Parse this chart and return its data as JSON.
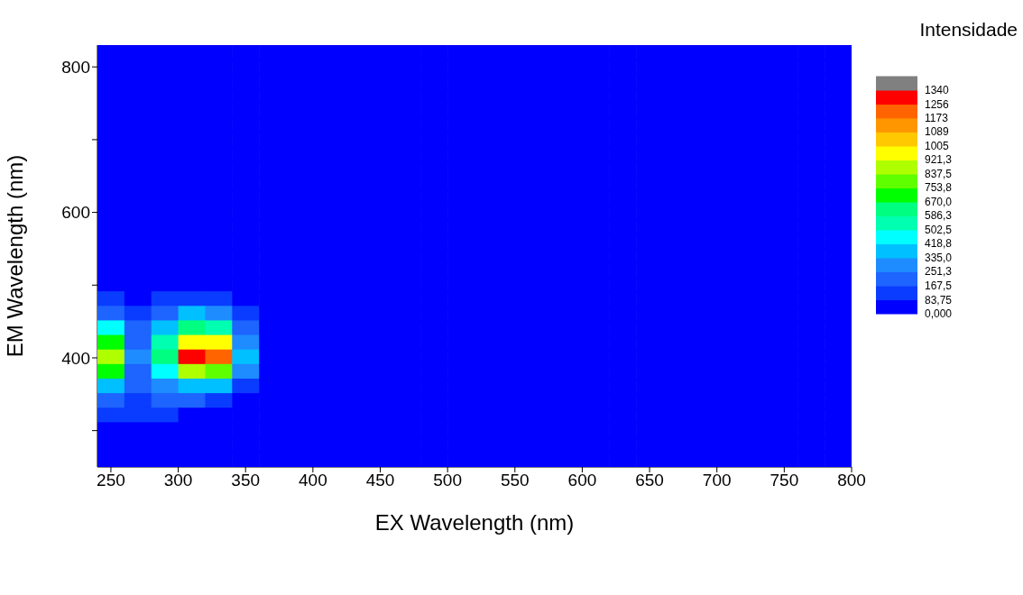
{
  "chart_data": {
    "type": "heatmap",
    "xlabel": "EX Wavelength (nm)",
    "ylabel": "EM Wavelength (nm)",
    "clabel": "Intensidade",
    "x": [
      250,
      270,
      290,
      310,
      330,
      350,
      370,
      390,
      410,
      430,
      450,
      470,
      490,
      510,
      530,
      550,
      570,
      590,
      610,
      630,
      650,
      670,
      690,
      710,
      730,
      750,
      770,
      790
    ],
    "y": [
      820,
      800,
      780,
      760,
      740,
      720,
      700,
      680,
      660,
      640,
      620,
      600,
      580,
      560,
      540,
      520,
      500,
      480,
      460,
      440,
      420,
      400,
      380,
      360,
      340,
      320,
      300,
      280,
      260
    ],
    "cells": [
      [
        0,
        0,
        0,
        0,
        0,
        0,
        0,
        0,
        0,
        0,
        0,
        0,
        0,
        0,
        0,
        0,
        0,
        0,
        0,
        0,
        0,
        0,
        0,
        0,
        0,
        0,
        0,
        0
      ],
      [
        0,
        0,
        0,
        0,
        0,
        0,
        0,
        0,
        0,
        0,
        0,
        0,
        0,
        0,
        0,
        0,
        0,
        0,
        0,
        0,
        0,
        0,
        0,
        0,
        0,
        0,
        0,
        0
      ],
      [
        0,
        0,
        0,
        0,
        0,
        0,
        0,
        0,
        0,
        0,
        0,
        0,
        0,
        0,
        0,
        0,
        0,
        0,
        0,
        0,
        0,
        0,
        0,
        0,
        0,
        0,
        0,
        0
      ],
      [
        0,
        0,
        0,
        0,
        0,
        0,
        0,
        0,
        0,
        0,
        0,
        0,
        0,
        0,
        0,
        0,
        0,
        0,
        0,
        0,
        0,
        0,
        0,
        0,
        0,
        0,
        0,
        0
      ],
      [
        0,
        0,
        0,
        0,
        0,
        0,
        0,
        0,
        0,
        0,
        0,
        0,
        0,
        0,
        0,
        0,
        0,
        0,
        0,
        0,
        0,
        0,
        0,
        0,
        0,
        0,
        0,
        0
      ],
      [
        0,
        0,
        0,
        0,
        0,
        0,
        0,
        0,
        0,
        0,
        0,
        0,
        0,
        0,
        0,
        0,
        0,
        0,
        0,
        0,
        0,
        0,
        0,
        0,
        0,
        0,
        0,
        0
      ],
      [
        0,
        0,
        0,
        0,
        0,
        0,
        0,
        0,
        0,
        0,
        0,
        0,
        0,
        0,
        0,
        0,
        0,
        0,
        0,
        0,
        0,
        0,
        0,
        0,
        0,
        0,
        0,
        0
      ],
      [
        0,
        0,
        0,
        0,
        0,
        0,
        0,
        0,
        0,
        0,
        0,
        0,
        0,
        0,
        0,
        0,
        0,
        0,
        0,
        0,
        0,
        0,
        0,
        0,
        0,
        0,
        0,
        0
      ],
      [
        0,
        0,
        0,
        0,
        0,
        0,
        0,
        0,
        0,
        0,
        0,
        0,
        0,
        0,
        0,
        0,
        0,
        0,
        0,
        0,
        0,
        0,
        0,
        0,
        0,
        0,
        0,
        0
      ],
      [
        0,
        0,
        0,
        0,
        0,
        0,
        0,
        0,
        0,
        0,
        0,
        0,
        0,
        0,
        0,
        0,
        0,
        0,
        0,
        0,
        0,
        0,
        0,
        0,
        0,
        0,
        0,
        0
      ],
      [
        0,
        0,
        0,
        0,
        0,
        0,
        0,
        0,
        0,
        0,
        0,
        0,
        0,
        0,
        0,
        0,
        0,
        0,
        0,
        0,
        0,
        0,
        0,
        0,
        0,
        0,
        0,
        0
      ],
      [
        0,
        0,
        0,
        0,
        0,
        0,
        0,
        0,
        0,
        0,
        0,
        0,
        0,
        0,
        0,
        0,
        0,
        0,
        0,
        0,
        0,
        0,
        0,
        0,
        0,
        0,
        0,
        0
      ],
      [
        0,
        0,
        0,
        0,
        0,
        0,
        0,
        0,
        0,
        0,
        0,
        0,
        0,
        0,
        0,
        0,
        0,
        0,
        0,
        0,
        0,
        0,
        0,
        0,
        0,
        0,
        0,
        0
      ],
      [
        0,
        0,
        0,
        0,
        0,
        0,
        0,
        0,
        0,
        0,
        0,
        0,
        0,
        0,
        0,
        0,
        0,
        0,
        0,
        0,
        0,
        0,
        0,
        0,
        0,
        0,
        0,
        0
      ],
      [
        0,
        0,
        0,
        0,
        0,
        0,
        0,
        0,
        0,
        0,
        0,
        0,
        0,
        0,
        0,
        0,
        0,
        0,
        0,
        0,
        0,
        0,
        0,
        0,
        0,
        0,
        0,
        0
      ],
      [
        0,
        0,
        0,
        0,
        0,
        0,
        0,
        0,
        0,
        0,
        0,
        0,
        0,
        0,
        0,
        0,
        0,
        0,
        0,
        0,
        0,
        0,
        0,
        0,
        0,
        0,
        0,
        0
      ],
      [
        0,
        0,
        0,
        0,
        0,
        0,
        0,
        0,
        0,
        0,
        0,
        0,
        0,
        0,
        0,
        0,
        0,
        0,
        0,
        0,
        0,
        0,
        0,
        0,
        0,
        0,
        0,
        0
      ],
      [
        125,
        40,
        125,
        125,
        125,
        40,
        0,
        0,
        0,
        0,
        0,
        0,
        0,
        0,
        0,
        0,
        0,
        0,
        0,
        0,
        0,
        0,
        0,
        0,
        0,
        0,
        0,
        0
      ],
      [
        210,
        125,
        210,
        377,
        293,
        125,
        0,
        0,
        0,
        0,
        0,
        0,
        0,
        0,
        0,
        0,
        0,
        0,
        0,
        0,
        0,
        0,
        0,
        0,
        0,
        0,
        0,
        0
      ],
      [
        460,
        210,
        377,
        628,
        544,
        210,
        0,
        0,
        0,
        0,
        0,
        0,
        0,
        0,
        0,
        0,
        0,
        0,
        0,
        0,
        0,
        0,
        0,
        0,
        0,
        0,
        0,
        0
      ],
      [
        712,
        210,
        544,
        963,
        963,
        293,
        0,
        0,
        0,
        0,
        0,
        0,
        0,
        0,
        0,
        0,
        0,
        0,
        0,
        0,
        0,
        0,
        0,
        0,
        0,
        0,
        0,
        0
      ],
      [
        879,
        293,
        628,
        1298,
        1215,
        377,
        0,
        0,
        0,
        0,
        0,
        0,
        0,
        0,
        0,
        0,
        0,
        0,
        0,
        0,
        0,
        0,
        0,
        0,
        0,
        0,
        0,
        0
      ],
      [
        712,
        210,
        460,
        879,
        795,
        293,
        0,
        0,
        0,
        0,
        0,
        0,
        0,
        0,
        0,
        0,
        0,
        0,
        0,
        0,
        0,
        0,
        0,
        0,
        0,
        0,
        0,
        0
      ],
      [
        377,
        210,
        293,
        377,
        377,
        125,
        0,
        0,
        0,
        0,
        0,
        0,
        0,
        0,
        0,
        0,
        0,
        0,
        0,
        0,
        0,
        0,
        0,
        0,
        0,
        0,
        0,
        0
      ],
      [
        210,
        125,
        210,
        210,
        125,
        40,
        0,
        0,
        0,
        0,
        0,
        0,
        0,
        0,
        0,
        0,
        0,
        0,
        0,
        0,
        0,
        0,
        0,
        0,
        0,
        0,
        0,
        0
      ],
      [
        125,
        125,
        125,
        40,
        40,
        0,
        0,
        0,
        0,
        0,
        0,
        0,
        0,
        0,
        0,
        0,
        0,
        0,
        0,
        0,
        0,
        0,
        0,
        0,
        0,
        0,
        0,
        0
      ],
      [
        40,
        40,
        0,
        0,
        0,
        0,
        0,
        0,
        0,
        0,
        0,
        0,
        0,
        0,
        0,
        0,
        0,
        0,
        0,
        0,
        0,
        0,
        0,
        0,
        0,
        0,
        0,
        0
      ],
      [
        0,
        0,
        0,
        0,
        0,
        0,
        0,
        0,
        0,
        0,
        0,
        0,
        0,
        0,
        0,
        0,
        0,
        0,
        0,
        0,
        0,
        0,
        0,
        0,
        0,
        0,
        0,
        0
      ],
      [
        0,
        0,
        0,
        0,
        0,
        0,
        0,
        0,
        0,
        0,
        0,
        0,
        0,
        0,
        0,
        0,
        0,
        0,
        0,
        0,
        0,
        0,
        0,
        0,
        0,
        0,
        0,
        0
      ]
    ],
    "xlim": [
      240,
      800
    ],
    "xticks": [
      250,
      300,
      350,
      400,
      450,
      500,
      550,
      600,
      650,
      700,
      750,
      800
    ],
    "ylim": [
      250,
      830
    ],
    "yticks": [
      {
        "value": 300,
        "label": null
      },
      400,
      {
        "value": 500,
        "label": null
      },
      600,
      {
        "value": 700,
        "label": null
      },
      800
    ],
    "clim": [
      0,
      1340
    ],
    "cticks": [
      {
        "value": 0,
        "label": "0,000"
      },
      {
        "value": 83.75,
        "label": "83,75"
      },
      {
        "value": 167.5,
        "label": "167,5"
      },
      {
        "value": 251.3,
        "label": "251,3"
      },
      {
        "value": 335,
        "label": "335,0"
      },
      {
        "value": 418.8,
        "label": "418,8"
      },
      {
        "value": 502.5,
        "label": "502,5"
      },
      {
        "value": 586.3,
        "label": "586,3"
      },
      {
        "value": 670,
        "label": "670,0"
      },
      {
        "value": 753.8,
        "label": "753,8"
      },
      {
        "value": 837.5,
        "label": "837,5"
      },
      {
        "value": 921.3,
        "label": "921,3"
      },
      {
        "value": 1005,
        "label": "1005"
      },
      {
        "value": 1089,
        "label": "1089"
      },
      {
        "value": 1173,
        "label": "1173"
      },
      {
        "value": 1256,
        "label": "1256"
      },
      {
        "value": 1340,
        "label": "1340"
      }
    ],
    "colors": [
      "#0000ff",
      "#0a3cff",
      "#1e64ff",
      "#1e8cff",
      "#00c0ff",
      "#00ffff",
      "#00ffb0",
      "#00ff80",
      "#00ff00",
      "#60ff00",
      "#b0ff00",
      "#ffff00",
      "#ffc800",
      "#ff9600",
      "#ff6400",
      "#ff0000",
      "#808080"
    ]
  }
}
